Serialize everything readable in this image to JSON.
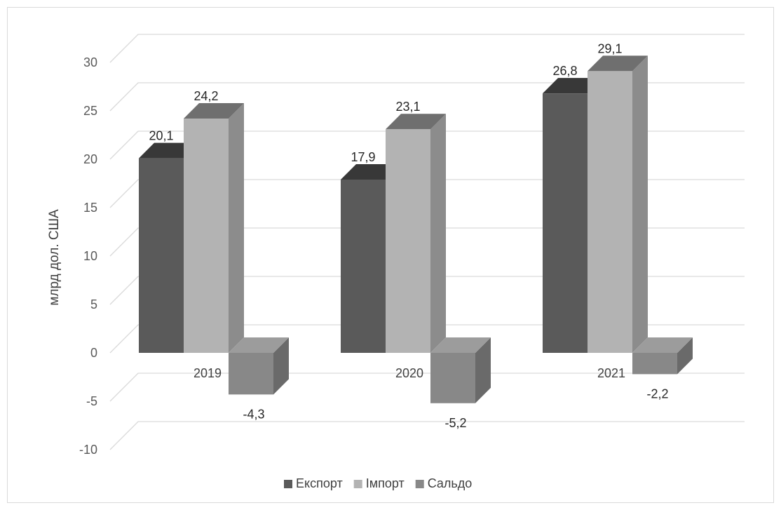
{
  "chart_data": {
    "type": "bar",
    "style": "3d-clustered-column",
    "categories": [
      "2019",
      "2020",
      "2021"
    ],
    "series": [
      {
        "name": "Експорт",
        "values": [
          20.1,
          17.9,
          26.8
        ],
        "labels": [
          "20,1",
          "17,9",
          "26,8"
        ],
        "color": "#5a5a5a"
      },
      {
        "name": "Імпорт",
        "values": [
          24.2,
          23.1,
          29.1
        ],
        "labels": [
          "24,2",
          "23,1",
          "29,1"
        ],
        "color": "#b3b3b3"
      },
      {
        "name": "Сальдо",
        "values": [
          -4.3,
          -5.2,
          -2.2
        ],
        "labels": [
          "-4,3",
          "-5,2",
          "-2,2"
        ],
        "color": "#888888"
      }
    ],
    "ylabel": "млрд дол. США",
    "ylim": [
      -10,
      30
    ],
    "yticks": [
      "-10",
      "-5",
      "0",
      "5",
      "10",
      "15",
      "20",
      "25",
      "30"
    ],
    "grid": true,
    "legend_position": "bottom"
  }
}
